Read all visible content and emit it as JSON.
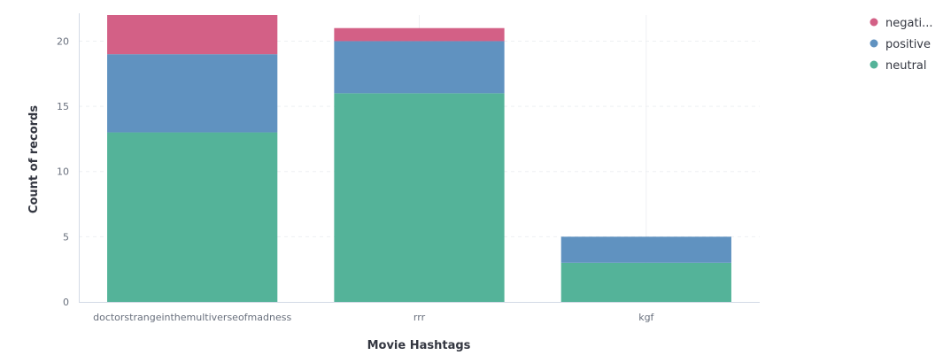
{
  "chart_data": {
    "type": "bar",
    "stacked": true,
    "categories": [
      "doctorstrangeinthemultiverseofmadness",
      "rrr",
      "kgf"
    ],
    "series": [
      {
        "name": "neutral",
        "values": [
          13,
          16,
          3
        ]
      },
      {
        "name": "positive",
        "values": [
          6,
          4,
          2
        ]
      },
      {
        "name": "negati...",
        "values": [
          3,
          1,
          0
        ]
      }
    ],
    "colors": {
      "neutral": "#54b399",
      "positive": "#6092c0",
      "negati...": "#d36086"
    },
    "xlabel": "Movie Hashtags",
    "ylabel": "Count of records",
    "ylim": [
      0,
      22
    ],
    "yticks": [
      0,
      5,
      10,
      15,
      20
    ],
    "grid": true,
    "legend_position": "top-right",
    "legend_order": [
      "negati...",
      "positive",
      "neutral"
    ]
  }
}
